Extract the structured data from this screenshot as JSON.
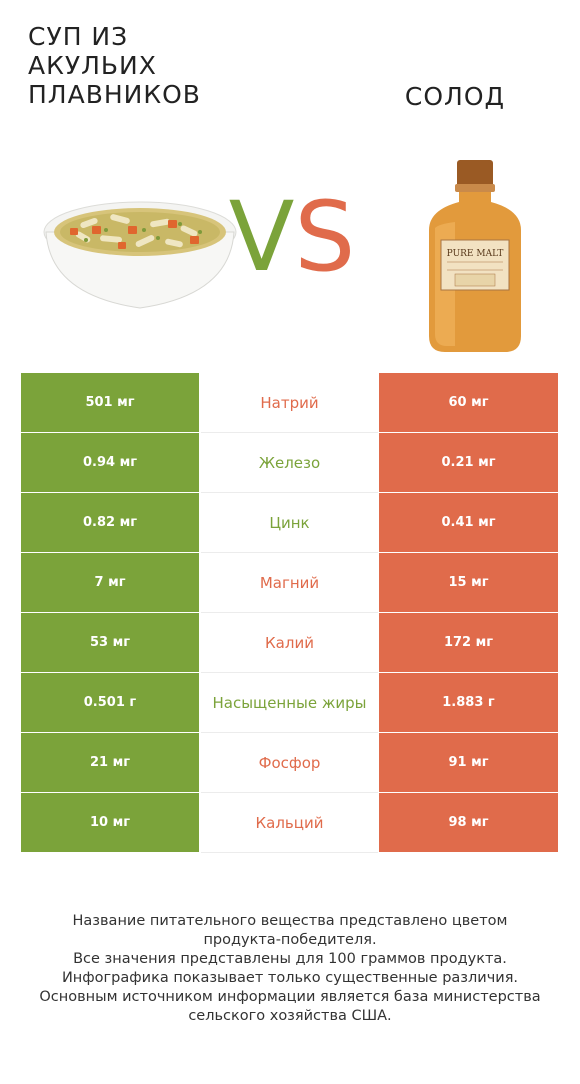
{
  "header": {
    "left_title": "СУП ИЗ АКУЛЬИХ ПЛАВНИКОВ",
    "right_title": "СОЛОД",
    "vs_v": "V",
    "vs_s": "S"
  },
  "colors": {
    "left": "#7ba33a",
    "right": "#e06b4b"
  },
  "bottle_label": "PURE MALT",
  "rows": [
    {
      "left": "501 мг",
      "nutrient": "Натрий",
      "right": "60 мг",
      "winner": "right"
    },
    {
      "left": "0.94 мг",
      "nutrient": "Железо",
      "right": "0.21 мг",
      "winner": "left"
    },
    {
      "left": "0.82 мг",
      "nutrient": "Цинк",
      "right": "0.41 мг",
      "winner": "left"
    },
    {
      "left": "7 мг",
      "nutrient": "Магний",
      "right": "15 мг",
      "winner": "right"
    },
    {
      "left": "53 мг",
      "nutrient": "Калий",
      "right": "172 мг",
      "winner": "right"
    },
    {
      "left": "0.501 г",
      "nutrient": "Насыщенные жиры",
      "right": "1.883 г",
      "winner": "left"
    },
    {
      "left": "21 мг",
      "nutrient": "Фосфор",
      "right": "91 мг",
      "winner": "right"
    },
    {
      "left": "10 мг",
      "nutrient": "Кальций",
      "right": "98 мг",
      "winner": "right"
    }
  ],
  "footer": {
    "line1": "Название питательного вещества представлено цветом",
    "line2": "продукта-победителя.",
    "line3": "Все значения представлены для 100 граммов продукта.",
    "line4": "Инфографика показывает только существенные различия.",
    "line5": "Основным источником информации является база министерства",
    "line6": "сельского хозяйства США."
  }
}
